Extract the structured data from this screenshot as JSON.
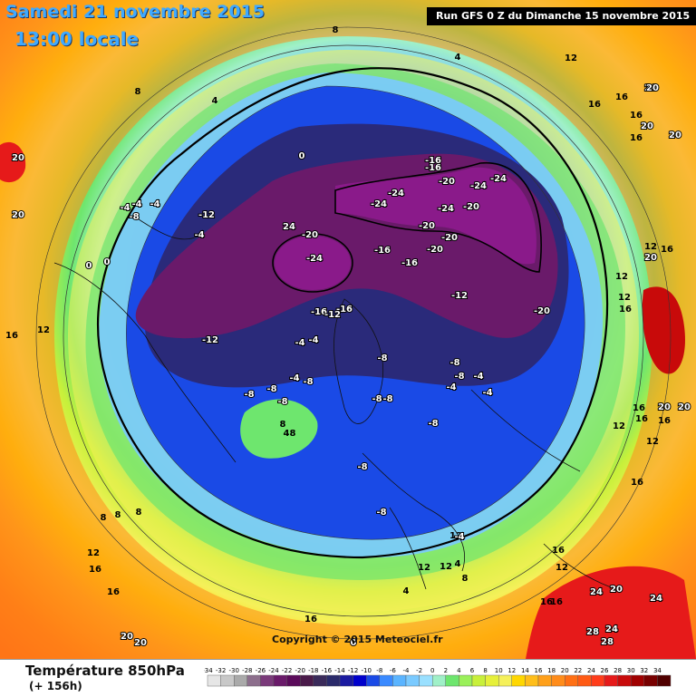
{
  "header": {
    "date": "Samedi 21 novembre 2015",
    "time": "13:00 locale",
    "run": "Run GFS 0 Z du Dimanche 15 novembre 2015"
  },
  "footer": {
    "variable": "Température 850hPa",
    "lead_time": "(+ 156h)",
    "copyright": "Copyright © 2015 Meteociel.fr"
  },
  "legend": {
    "ticks": [
      "-34",
      "-32",
      "-30",
      "-28",
      "-26",
      "-24",
      "-22",
      "-20",
      "-18",
      "-16",
      "-14",
      "-12",
      "-10",
      "-8",
      "-6",
      "-4",
      "-2",
      "0",
      "2",
      "4",
      "6",
      "8",
      "10",
      "12",
      "14",
      "16",
      "18",
      "20",
      "22",
      "24",
      "26",
      "28",
      "30",
      "32",
      "34"
    ],
    "colors": [
      "#e6e6e6",
      "#c8c8c8",
      "#aaaaaa",
      "#8c6e8c",
      "#7a3a7a",
      "#6a1a6a",
      "#5a0a5a",
      "#4a1a4a",
      "#3a2a5a",
      "#2a2a6a",
      "#1a1aa0",
      "#0000cc",
      "#1a4ae6",
      "#3a8aff",
      "#5ab4ff",
      "#7acaff",
      "#9ae0ff",
      "#a0f0c8",
      "#6ee66e",
      "#9af05a",
      "#c8f03a",
      "#e6f03a",
      "#f5f05a",
      "#ffd700",
      "#ffbe1a",
      "#ffa01a",
      "#ff8c1a",
      "#ff7014",
      "#ff5a14",
      "#ff3c1a",
      "#e61a1a",
      "#c80a0a",
      "#a00000",
      "#780000",
      "#500000"
    ]
  },
  "map_labels": [
    {
      "t": "-24"
    },
    {
      "t": "-20"
    },
    {
      "t": "-24"
    },
    {
      "t": "-24"
    },
    {
      "t": "-24"
    },
    {
      "t": "-20"
    },
    {
      "t": "-16"
    },
    {
      "t": "-16"
    },
    {
      "t": "-20"
    },
    {
      "t": "-24"
    },
    {
      "t": "-20"
    },
    {
      "t": "-24"
    },
    {
      "t": "-20"
    },
    {
      "t": "-20"
    },
    {
      "t": "-16"
    },
    {
      "t": "-16"
    },
    {
      "t": "-16"
    },
    {
      "t": "-12"
    },
    {
      "t": "-20"
    },
    {
      "t": "-16"
    },
    {
      "t": "-12"
    },
    {
      "t": "-8"
    },
    {
      "t": "-8"
    },
    {
      "t": "-8"
    },
    {
      "t": "-8"
    },
    {
      "t": "-8"
    },
    {
      "t": "-8"
    },
    {
      "t": "-8"
    },
    {
      "t": "-4"
    },
    {
      "t": "-4"
    },
    {
      "t": "-4"
    },
    {
      "t": "-12"
    },
    {
      "t": "-4"
    },
    {
      "t": "-8"
    },
    {
      "t": "0"
    },
    {
      "t": "-4"
    },
    {
      "t": "0"
    },
    {
      "t": "4"
    },
    {
      "t": "8"
    },
    {
      "t": "24"
    },
    {
      "t": "-4"
    },
    {
      "t": "-12"
    },
    {
      "t": "-8"
    },
    {
      "t": "-4"
    },
    {
      "t": "-8"
    },
    {
      "t": "-8"
    },
    {
      "t": "-8"
    },
    {
      "t": "-4"
    },
    {
      "t": "-4"
    },
    {
      "t": "-4"
    },
    {
      "t": "0"
    },
    {
      "t": "12"
    },
    {
      "t": "12"
    },
    {
      "t": "12"
    },
    {
      "t": "16"
    },
    {
      "t": "16"
    },
    {
      "t": "20"
    },
    {
      "t": "20"
    },
    {
      "t": "20"
    },
    {
      "t": "16"
    },
    {
      "t": "16"
    },
    {
      "t": "12"
    },
    {
      "t": "12"
    },
    {
      "t": "16"
    },
    {
      "t": "16"
    },
    {
      "t": "20"
    },
    {
      "t": "20"
    },
    {
      "t": "16"
    },
    {
      "t": "16"
    },
    {
      "t": "24"
    },
    {
      "t": "20"
    },
    {
      "t": "24"
    },
    {
      "t": "28"
    },
    {
      "t": "24"
    },
    {
      "t": "28"
    },
    {
      "t": "20"
    },
    {
      "t": "20"
    },
    {
      "t": "16"
    },
    {
      "t": "16"
    },
    {
      "t": "16"
    },
    {
      "t": "12"
    },
    {
      "t": "12"
    },
    {
      "t": "8"
    },
    {
      "t": "8"
    },
    {
      "t": "8"
    },
    {
      "t": "8"
    },
    {
      "t": "8"
    },
    {
      "t": "4"
    },
    {
      "t": "4"
    },
    {
      "t": "0"
    },
    {
      "t": "4"
    },
    {
      "t": "8"
    },
    {
      "t": "12"
    },
    {
      "t": "12"
    },
    {
      "t": "16"
    },
    {
      "t": "16"
    },
    {
      "t": "16"
    },
    {
      "t": "20"
    },
    {
      "t": "20"
    },
    {
      "t": "20"
    },
    {
      "t": "8"
    },
    {
      "t": "4"
    },
    {
      "t": "-4"
    },
    {
      "t": "-8"
    },
    {
      "t": "16"
    },
    {
      "t": "12"
    },
    {
      "t": "12"
    },
    {
      "t": "16"
    },
    {
      "t": "20"
    },
    {
      "t": "16"
    },
    {
      "t": "12"
    }
  ]
}
